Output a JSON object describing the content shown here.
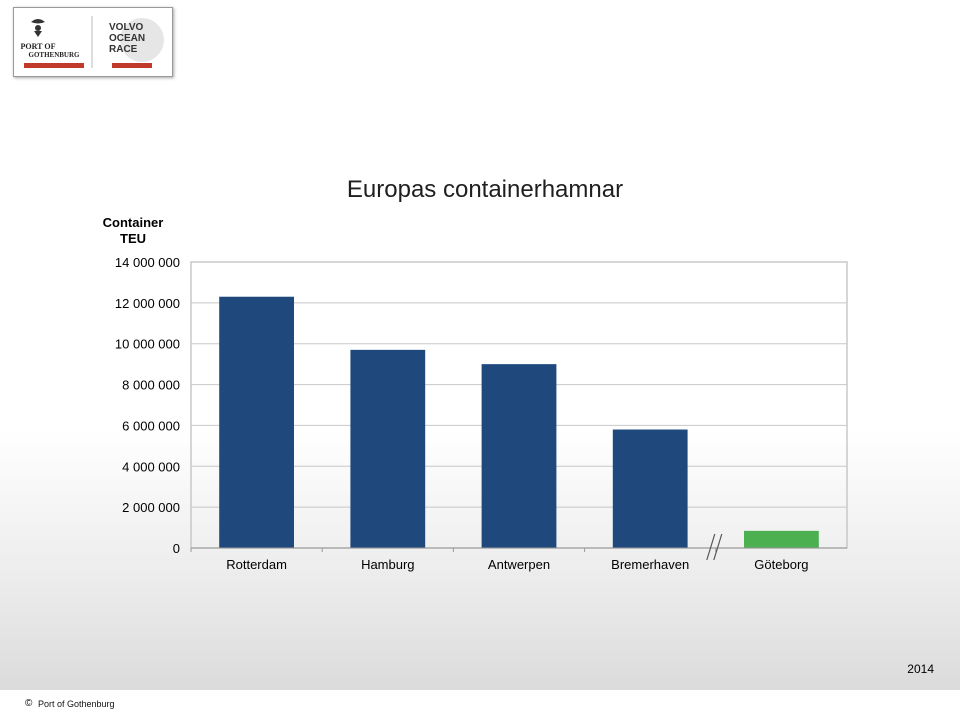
{
  "logo": {
    "port_text_1": "PORT OF",
    "port_text_2": "GOTHENBURG",
    "race_text_1": "VOLVO",
    "race_text_2": "OCEAN",
    "race_text_3": "RACE"
  },
  "footer": {
    "copyright": "©",
    "text": "Port of Gothenburg"
  },
  "year": "2014",
  "colors": {
    "main_bar": "#1f497d",
    "highlight_bar": "#4caf50",
    "grid": "#c8c8c8"
  },
  "chart_data": {
    "type": "bar",
    "title": "Europas containerhamnar",
    "ylabel": "Container TEU",
    "xlabel": "",
    "categories": [
      "Rotterdam",
      "Hamburg",
      "Antwerpen",
      "Bremerhaven",
      "Göteborg"
    ],
    "values": [
      12300000,
      9700000,
      9000000,
      5800000,
      840000
    ],
    "highlight": "Göteborg",
    "ylim": [
      0,
      14000000
    ],
    "yticks": [
      "0",
      "2 000 000",
      "4 000 000",
      "6 000 000",
      "8 000 000",
      "10 000 000",
      "12 000 000",
      "14 000 000"
    ],
    "axis_break_before": "Göteborg",
    "grid": true,
    "legend": "none"
  }
}
